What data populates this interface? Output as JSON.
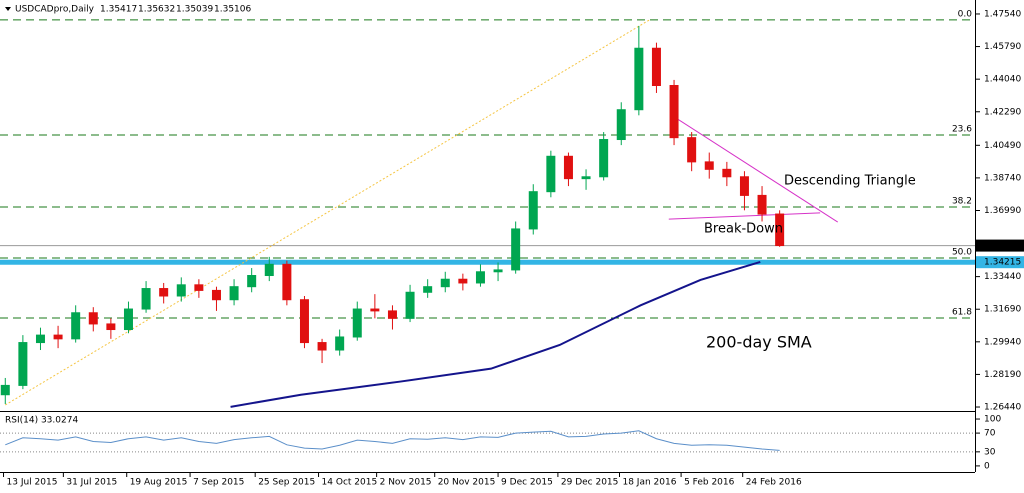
{
  "chart_data": {
    "type": "candlestick",
    "title": "USDCADpro,Daily",
    "ohlc": [
      1.35417,
      1.35632,
      1.35039,
      1.35106
    ],
    "open": [
      1.271,
      1.276,
      1.299,
      1.303,
      1.301,
      1.315,
      1.309,
      1.306,
      1.317,
      1.328,
      1.324,
      1.33,
      1.327,
      1.322,
      1.329,
      1.335,
      1.341,
      1.322,
      1.299,
      1.295,
      1.302,
      1.317,
      1.316,
      1.312,
      1.326,
      1.329,
      1.333,
      1.331,
      1.337,
      1.338,
      1.36,
      1.38,
      1.399,
      1.387,
      1.388,
      1.408,
      1.424,
      1.457,
      1.437,
      1.409,
      1.396,
      1.392,
      1.388,
      1.378,
      1.368
    ],
    "high": [
      1.28,
      1.303,
      1.307,
      1.308,
      1.319,
      1.318,
      1.312,
      1.321,
      1.332,
      1.331,
      1.334,
      1.333,
      1.329,
      1.333,
      1.339,
      1.345,
      1.343,
      1.324,
      1.301,
      1.306,
      1.321,
      1.325,
      1.319,
      1.33,
      1.333,
      1.337,
      1.336,
      1.341,
      1.342,
      1.364,
      1.384,
      1.402,
      1.401,
      1.392,
      1.412,
      1.428,
      1.469,
      1.46,
      1.44,
      1.412,
      1.401,
      1.396,
      1.391,
      1.383,
      1.37
    ],
    "low": [
      1.266,
      1.274,
      1.295,
      1.296,
      1.299,
      1.305,
      1.301,
      1.304,
      1.315,
      1.32,
      1.321,
      1.323,
      1.316,
      1.319,
      1.326,
      1.332,
      1.319,
      1.296,
      1.288,
      1.292,
      1.3,
      1.312,
      1.306,
      1.31,
      1.323,
      1.326,
      1.327,
      1.329,
      1.332,
      1.336,
      1.357,
      1.377,
      1.383,
      1.381,
      1.386,
      1.405,
      1.421,
      1.433,
      1.405,
      1.391,
      1.387,
      1.383,
      1.37,
      1.364,
      1.3504
    ],
    "close": [
      1.276,
      1.299,
      1.303,
      1.301,
      1.315,
      1.309,
      1.306,
      1.317,
      1.328,
      1.324,
      1.33,
      1.327,
      1.322,
      1.329,
      1.335,
      1.341,
      1.322,
      1.299,
      1.295,
      1.302,
      1.317,
      1.316,
      1.312,
      1.326,
      1.329,
      1.333,
      1.331,
      1.337,
      1.338,
      1.36,
      1.38,
      1.399,
      1.387,
      1.388,
      1.408,
      1.424,
      1.457,
      1.437,
      1.409,
      1.396,
      1.392,
      1.388,
      1.378,
      1.368,
      1.3511
    ],
    "up_color": "#00a651",
    "down_color": "#e01010",
    "xlim": [
      -0.3,
      55.1
    ],
    "xticks": [
      {
        "value": -0.1,
        "label": "13 Jul 2015"
      },
      {
        "value": 3.3,
        "label": "31 Jul 2015"
      },
      {
        "value": 6.9,
        "label": "19 Aug 2015"
      },
      {
        "value": 10.5,
        "label": "7 Sep 2015"
      },
      {
        "value": 14.2,
        "label": "25 Sep 2015"
      },
      {
        "value": 17.8,
        "label": "14 Oct 2015"
      },
      {
        "value": 21.1,
        "label": "2 Nov 2015"
      },
      {
        "value": 24.4,
        "label": "20 Nov 2015"
      },
      {
        "value": 28.0,
        "label": "9 Dec 2015"
      },
      {
        "value": 31.4,
        "label": "29 Dec 2015"
      },
      {
        "value": 34.9,
        "label": "18 Jan 2016"
      },
      {
        "value": 38.4,
        "label": "5 Feb 2016"
      },
      {
        "value": 41.9,
        "label": "24 Feb 2016"
      }
    ],
    "ylim": [
      1.2628,
      1.4829
    ],
    "yticks": [
      {
        "value": 1.4754,
        "label": "1.47540"
      },
      {
        "value": 1.4579,
        "label": "1.45790"
      },
      {
        "value": 1.4404,
        "label": "1.44040"
      },
      {
        "value": 1.4229,
        "label": "1.42290"
      },
      {
        "value": 1.4049,
        "label": "1.40490"
      },
      {
        "value": 1.3874,
        "label": "1.38740"
      },
      {
        "value": 1.3699,
        "label": "1.36990"
      },
      {
        "value": 1.3344,
        "label": "1.33440"
      },
      {
        "value": 1.3169,
        "label": "1.31690"
      },
      {
        "value": 1.2994,
        "label": "1.29940"
      },
      {
        "value": 1.2819,
        "label": "1.28190"
      },
      {
        "value": 1.2644,
        "label": "1.26440"
      }
    ],
    "price_lines": [
      {
        "value": 1.35106,
        "color": "#000000"
      },
      {
        "value": 1.34215,
        "color": "#33b5e5"
      }
    ],
    "fib": {
      "color": "#1a7a1a",
      "labels": [
        "0.0",
        "23.6",
        "38.2",
        "50.0",
        "61.8"
      ],
      "prices": [
        1.4722,
        1.4104,
        1.3718,
        1.3444,
        1.3122
      ]
    },
    "sma": {
      "label": "200-day SMA",
      "color": "#14148c",
      "x": [
        12.8,
        16.8,
        22.4,
        27.6,
        31.5,
        36.1,
        39.5,
        42.9
      ],
      "values": [
        1.2645,
        1.271,
        1.278,
        1.285,
        1.2977,
        1.319,
        1.3326,
        1.3423
      ]
    },
    "trendlines": [
      {
        "color": "#f5c542",
        "x": [
          0,
          36.6
        ],
        "values": [
          1.2655,
          1.4722
        ]
      },
      {
        "color": "#d633c8",
        "x": [
          38.1,
          47.3
        ],
        "values": [
          1.4196,
          1.3637
        ]
      },
      {
        "color": "#d633c8",
        "x": [
          37.7,
          46.3
        ],
        "values": [
          1.3653,
          1.3686
        ]
      }
    ],
    "annotations": [
      "Descending Triangle",
      "Break-Down"
    ],
    "rsi": {
      "title": "RSI(14) 33.0274",
      "color": "#5b8fc9",
      "ylim": [
        -13,
        115
      ],
      "yticks": [
        100,
        70,
        30,
        0
      ],
      "levels": [
        70,
        30
      ],
      "values": [
        45,
        60,
        58,
        55,
        62,
        52,
        50,
        58,
        62,
        55,
        60,
        52,
        48,
        56,
        60,
        63,
        45,
        38,
        36,
        44,
        55,
        52,
        48,
        58,
        57,
        60,
        56,
        62,
        61,
        70,
        72,
        74,
        62,
        63,
        68,
        70,
        75,
        58,
        48,
        44,
        45,
        44,
        40,
        36,
        33.03
      ]
    }
  }
}
